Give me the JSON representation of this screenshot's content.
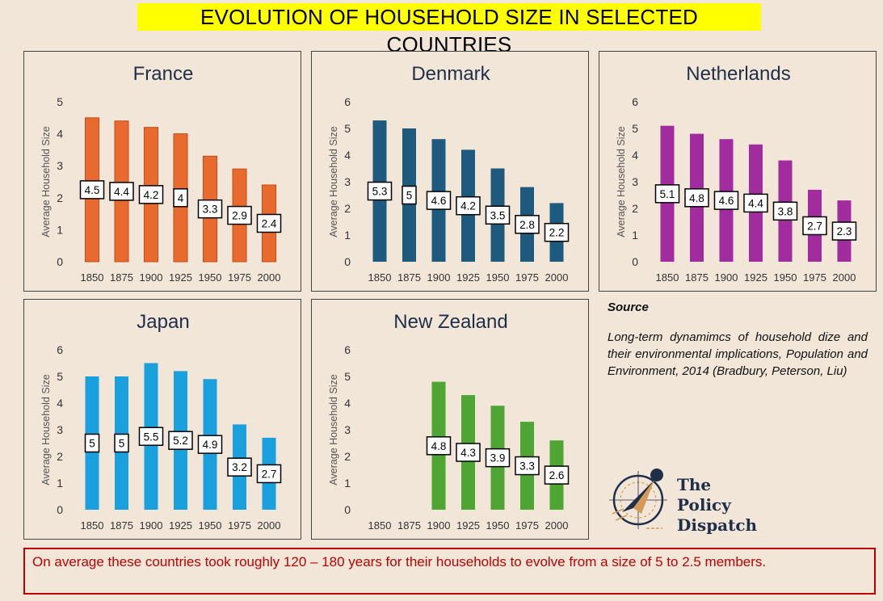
{
  "title": "EVOLUTION OF HOUSEHOLD SIZE IN SELECTED  COUNTRIES",
  "chart_data": [
    {
      "type": "bar",
      "title": "France",
      "categories": [
        "1850",
        "1875",
        "1900",
        "1925",
        "1950",
        "1975",
        "2000"
      ],
      "values": [
        4.5,
        4.4,
        4.2,
        4,
        3.3,
        2.9,
        2.4
      ],
      "ylabel": "Average Household Size",
      "ylim": [
        0,
        5
      ],
      "yticks": [
        "0",
        "1",
        "2",
        "3",
        "4",
        "5"
      ],
      "color": "#e86a2e"
    },
    {
      "type": "bar",
      "title": "Denmark",
      "categories": [
        "1850",
        "1875",
        "1900",
        "1925",
        "1950",
        "1975",
        "2000"
      ],
      "values": [
        5.3,
        5,
        4.6,
        4.2,
        3.5,
        2.8,
        2.2
      ],
      "ylabel": "Average Household Size",
      "ylim": [
        0,
        6
      ],
      "yticks": [
        "0",
        "1",
        "2",
        "3",
        "4",
        "5",
        "6"
      ],
      "color": "#1d5a7e"
    },
    {
      "type": "bar",
      "title": "Netherlands",
      "categories": [
        "1850",
        "1875",
        "1900",
        "1925",
        "1950",
        "1975",
        "2000"
      ],
      "values": [
        5.1,
        4.8,
        4.6,
        4.4,
        3.8,
        2.7,
        2.3
      ],
      "ylabel": "Average Household Size",
      "ylim": [
        0,
        6
      ],
      "yticks": [
        "0",
        "1",
        "2",
        "3",
        "4",
        "5",
        "6"
      ],
      "color": "#a02c9e"
    },
    {
      "type": "bar",
      "title": "Japan",
      "categories": [
        "1850",
        "1875",
        "1900",
        "1925",
        "1950",
        "1975",
        "2000"
      ],
      "values": [
        5,
        5,
        5.5,
        5.2,
        4.9,
        3.2,
        2.7
      ],
      "ylabel": "Average Household Size",
      "ylim": [
        0,
        6
      ],
      "yticks": [
        "0",
        "1",
        "2",
        "3",
        "4",
        "5",
        "6"
      ],
      "color": "#1aa0dc"
    },
    {
      "type": "bar",
      "title": "New Zealand",
      "categories": [
        "1850",
        "1875",
        "1900",
        "1925",
        "1950",
        "1975",
        "2000"
      ],
      "values": [
        null,
        null,
        4.8,
        4.3,
        3.9,
        3.3,
        2.6
      ],
      "ylabel": "Average Household Size",
      "ylim": [
        0,
        6
      ],
      "yticks": [
        "0",
        "1",
        "2",
        "3",
        "4",
        "5",
        "6"
      ],
      "color": "#4fa534"
    }
  ],
  "source": {
    "heading": "Source",
    "text": "Long-term dynamimcs of household dize and their environmental implications, Population and Environment, 2014 (Bradbury, Peterson, Liu)"
  },
  "logo": {
    "line1": "The",
    "line2": "Policy",
    "line3": "Dispatch"
  },
  "footnote": "On average these countries took roughly 120 – 180 years for their households to evolve from a size of 5 to 2.5 members."
}
